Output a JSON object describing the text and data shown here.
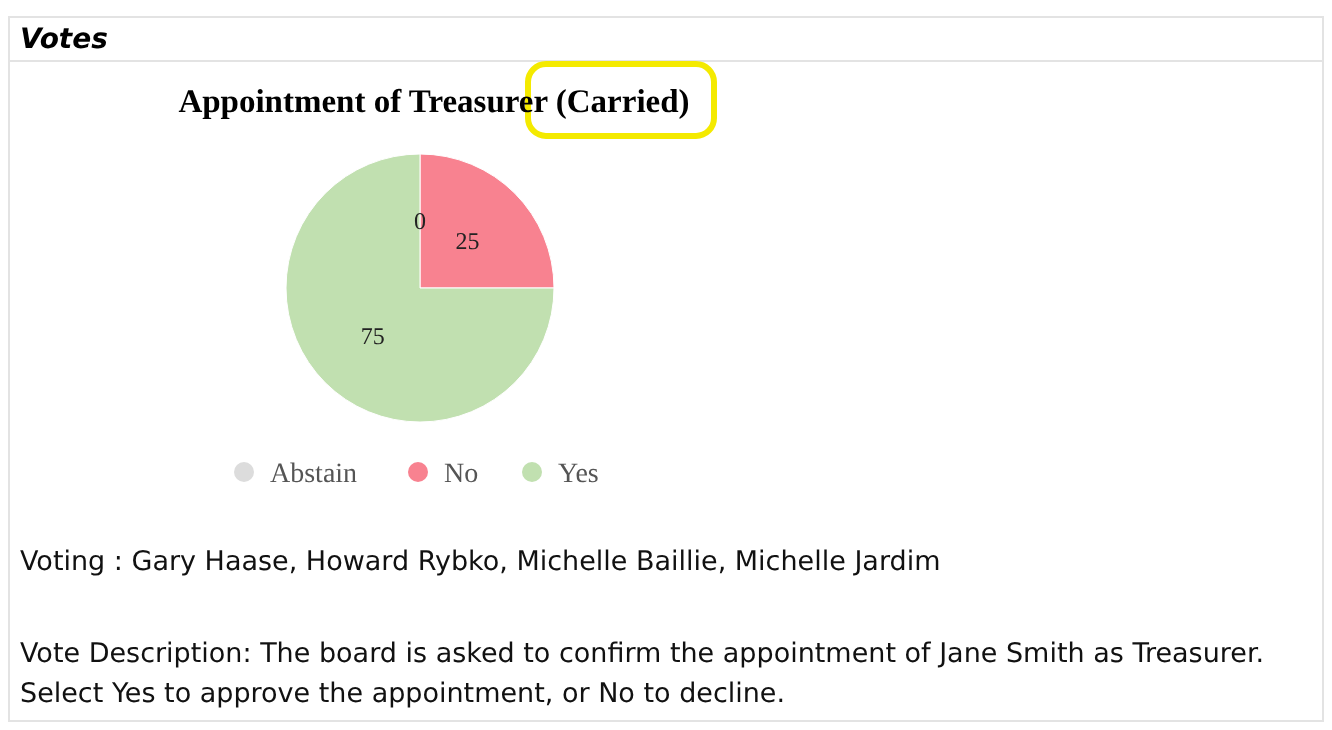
{
  "chart_data": {
    "type": "pie",
    "title": "Appointment of Treasurer (Carried)",
    "categories": [
      "Abstain",
      "No",
      "Yes"
    ],
    "values": [
      0,
      25,
      75
    ],
    "colors": [
      "#dcdcdc",
      "#f88290",
      "#c1e0b0"
    ],
    "value_labels": [
      "0",
      "25",
      "75"
    ],
    "legend": "bottom",
    "annotations": [
      "Votes",
      "Voting : Gary Haase, Howard Rybko, Michelle Baillie, Michelle Jardim",
      "Vote Description: The board is asked to confirm the appointment of Jane Smith as Treasurer. Select Yes to approve the appointment, or No to decline."
    ]
  }
}
